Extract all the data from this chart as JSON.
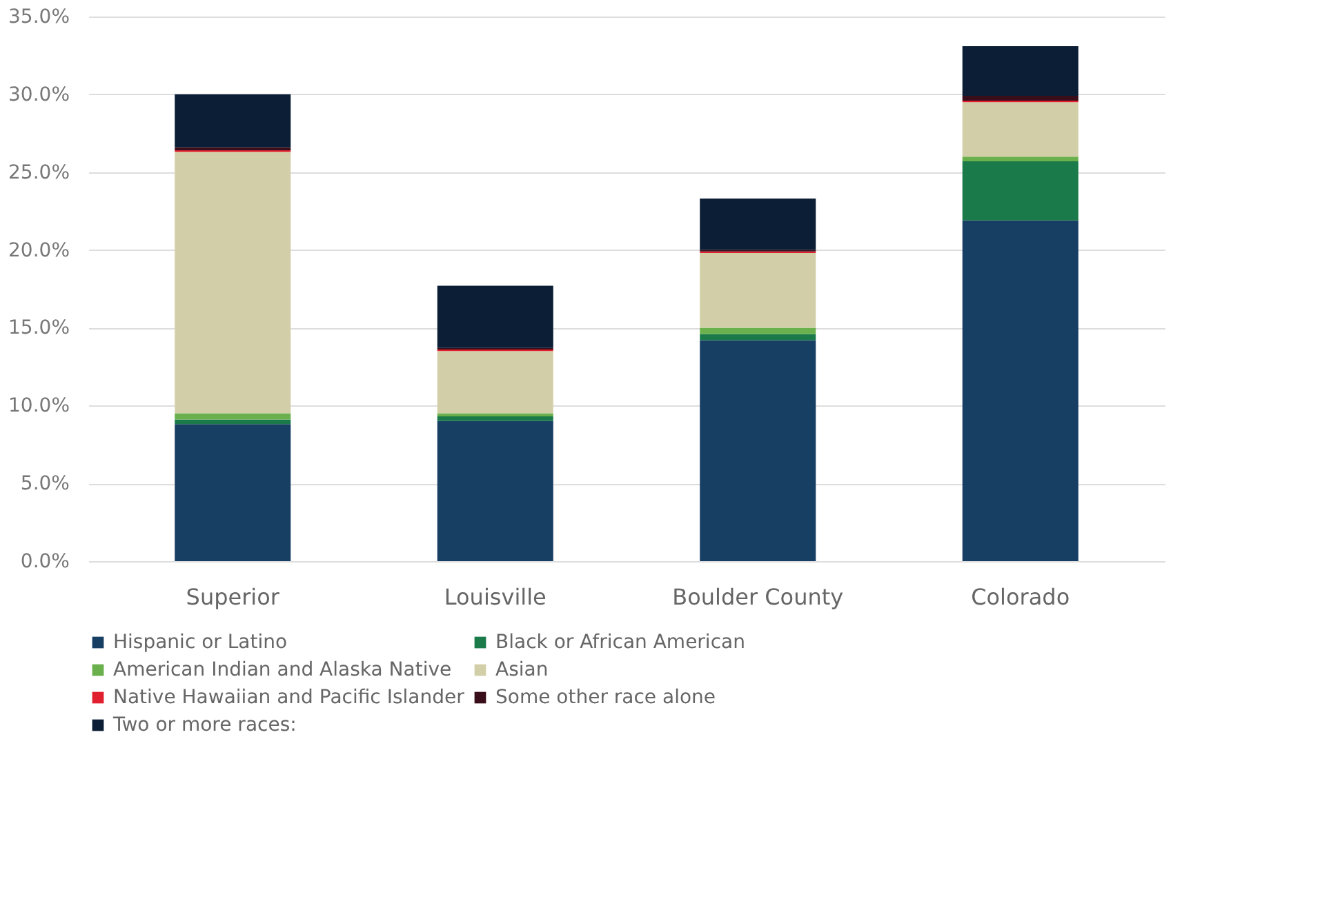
{
  "chart_data": {
    "type": "bar",
    "stacked": true,
    "categories": [
      "Superior",
      "Louisville",
      "Boulder County",
      "Colorado"
    ],
    "series": [
      {
        "name": "Hispanic or Latino",
        "color": "#173e63",
        "values": [
          8.8,
          9.0,
          14.2,
          21.9
        ]
      },
      {
        "name": "Black or African American",
        "color": "#1a7a4a",
        "values": [
          0.3,
          0.3,
          0.4,
          3.8
        ]
      },
      {
        "name": "American Indian and Alaska Native",
        "color": "#6ab04c",
        "values": [
          0.4,
          0.2,
          0.4,
          0.3
        ]
      },
      {
        "name": "Asian",
        "color": "#d2cfa8",
        "values": [
          16.8,
          4.0,
          4.8,
          3.5
        ]
      },
      {
        "name": "Native Hawaiian and Pacific Islander",
        "color": "#e0202f",
        "values": [
          0.1,
          0.1,
          0.1,
          0.1
        ]
      },
      {
        "name": "Some other race alone",
        "color": "#3a0d1a",
        "values": [
          0.2,
          0.1,
          0.1,
          0.3
        ]
      },
      {
        "name": "Two or more races:",
        "color": "#0b1e35",
        "values": [
          3.4,
          4.0,
          3.3,
          3.2
        ]
      }
    ],
    "ylim": [
      0,
      35
    ],
    "yticks": [
      {
        "value": 0,
        "label": "0.0%"
      },
      {
        "value": 5,
        "label": "5.0%"
      },
      {
        "value": 10,
        "label": "10.0%"
      },
      {
        "value": 15,
        "label": "15.0%"
      },
      {
        "value": 20,
        "label": "20.0%"
      },
      {
        "value": 25,
        "label": "25.0%"
      },
      {
        "value": 30,
        "label": "30.0%"
      },
      {
        "value": 35,
        "label": "35.0%"
      }
    ],
    "grid": "y",
    "legend": "bottom"
  }
}
